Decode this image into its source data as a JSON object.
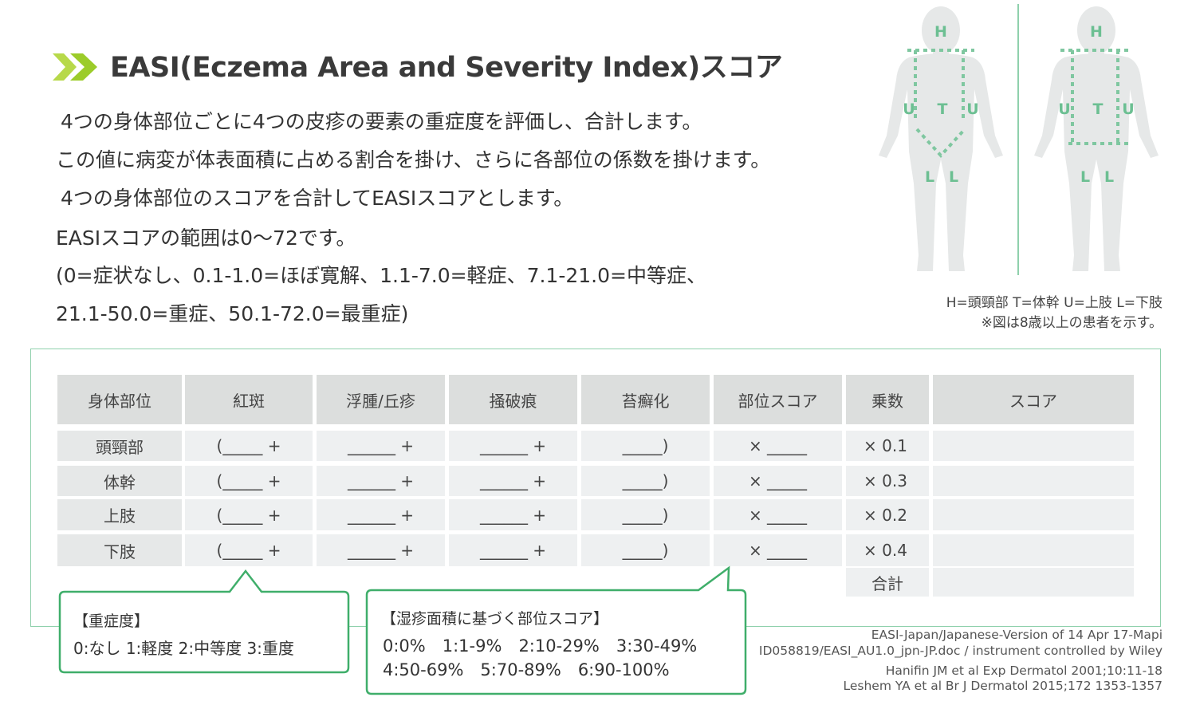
{
  "header": {
    "title": "EASI(Eczema Area and Severity Index)スコア"
  },
  "description": [
    "4つの身体部位ごとに4つの皮疹の要素の重症度を評価し、合計します。",
    "この値に病変が体表面積に占める割合を掛け、さらに各部位の係数を掛けます。",
    "4つの身体部位のスコアを合計してEASIスコアとします。",
    "EASIスコアの範囲は0〜72です。",
    "(0=症状なし、0.1-1.0=ほぼ寛解、1.1-7.0=軽症、7.1-21.0=中等症、",
    "21.1-50.0=重症、50.1-72.0=最重症)"
  ],
  "figure": {
    "front_labels": [
      "H",
      "U",
      "T",
      "U",
      "L",
      "L"
    ],
    "back_labels": [
      "H",
      "U",
      "T",
      "U",
      "L",
      "L"
    ],
    "caption": [
      "H=頭頸部 T=体幹 U=上肢 L=下肢",
      "※図は8歳以上の患者を示す。"
    ]
  },
  "table": {
    "headers": [
      "身体部位",
      "紅斑",
      "浮腫/丘疹",
      "掻破痕",
      "苔癬化",
      "部位スコア",
      "乗数",
      "スコア"
    ],
    "rows": [
      [
        "頭頸部",
        "(_____ +",
        "______ +",
        "______ +",
        "_____)",
        "× _____",
        "× 0.1"
      ],
      [
        "体幹",
        "(_____ +",
        "______ +",
        "______ +",
        "_____)",
        "× _____",
        "× 0.3"
      ],
      [
        "上肢",
        "(_____ +",
        "______ +",
        "______ +",
        "_____)",
        "× _____",
        "× 0.2"
      ],
      [
        "下肢",
        "(_____ +",
        "______ +",
        "______ +",
        "_____)",
        "× _____",
        "× 0.4"
      ]
    ],
    "total_label": "合計"
  },
  "severity": {
    "title": "【重症度】",
    "text": "0:なし 1:軽度 2:中等度 3:重度"
  },
  "area": {
    "title": "【湿疹面積に基づく部位スコア】",
    "lines": [
      "0:0%　1:1-9%　2:10-29%　3:30-49%",
      "4:50-69%　5:70-89%　6:90-100%"
    ]
  },
  "footer": [
    "EASI-Japan/Japanese-Version of 14 Apr 17-Mapi",
    "ID058819/EASI_AU1.0_jpn-JP.doc / instrument controlled by Wiley",
    "Hanifin JM et al  Exp Dermatol 2001;10:11-18",
    "Leshem YA et al  Br J Dermatol 2015;172 1353-1357"
  ]
}
